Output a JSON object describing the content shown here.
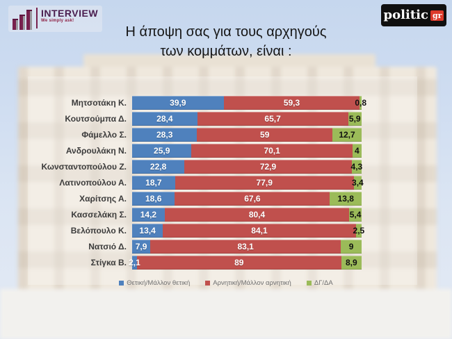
{
  "header": {
    "interview_logo": {
      "name": "INTERVIEW",
      "tagline": "We simply ask!"
    },
    "politic_logo": {
      "name": "politic",
      "suffix": "gr"
    }
  },
  "title": {
    "line1": "Η άποψη σας για τους αρχηγούς",
    "line2": "των κομμάτων,  είναι :"
  },
  "chart_data": {
    "type": "bar",
    "orientation": "horizontal",
    "stacked": true,
    "xlim": [
      0,
      100
    ],
    "grid": false,
    "legend_position": "bottom",
    "categories": [
      "Μητσοτάκη Κ.",
      "Κουτσούμπα Δ.",
      "Φάμελλο Σ.",
      "Ανδρουλάκη Ν.",
      "Κωνσταντοπούλου Ζ.",
      "Λατινοπούλου Α.",
      "Χαρίτσης Α.",
      "Κασσελάκη Σ.",
      "Βελόπουλο Κ.",
      "Νατσιό Δ.",
      "Στίγκα Β."
    ],
    "series": [
      {
        "name": "Θετική/Μάλλον θετική",
        "color": "#4f81bd",
        "label_color": "light",
        "values": [
          39.9,
          28.4,
          28.3,
          25.9,
          22.8,
          18.7,
          18.6,
          14.2,
          13.4,
          7.9,
          2.1
        ],
        "labels": [
          "39,9",
          "28,4",
          "28,3",
          "25,9",
          "22,8",
          "18,7",
          "18,6",
          "14,2",
          "13,4",
          "7,9",
          "2,1"
        ]
      },
      {
        "name": "Αρνητική/Μάλλον αρνητική",
        "color": "#c0504d",
        "label_color": "light",
        "values": [
          59.3,
          65.7,
          59,
          70.1,
          72.9,
          77.9,
          67.6,
          80.4,
          84.1,
          83.1,
          89
        ],
        "labels": [
          "59,3",
          "65,7",
          "59",
          "70,1",
          "72,9",
          "77,9",
          "67,6",
          "80,4",
          "84,1",
          "83,1",
          "89"
        ]
      },
      {
        "name": "ΔΓ/ΔΑ",
        "color": "#9bbb59",
        "label_color": "dark",
        "values": [
          0.8,
          5.9,
          12.7,
          4,
          4.3,
          3.4,
          13.8,
          5.4,
          2.5,
          9,
          8.9
        ],
        "labels": [
          "0,8",
          "5,9",
          "12,7",
          "4",
          "4,3",
          "3,4",
          "13,8",
          "5,4",
          "2,5",
          "9",
          "8,9"
        ]
      }
    ]
  }
}
